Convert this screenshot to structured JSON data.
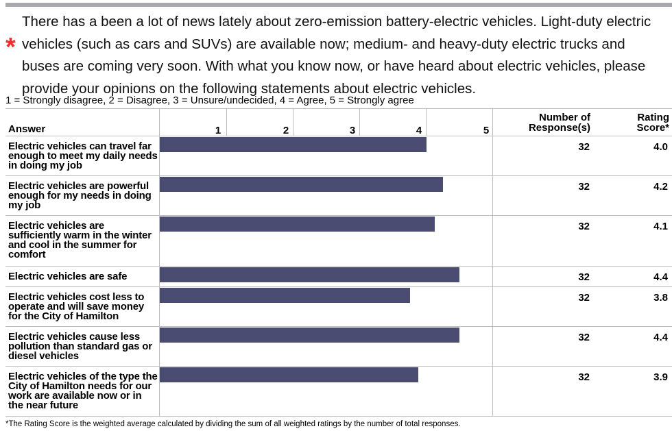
{
  "question": {
    "required_marker": "*",
    "text": "There has a been a lot of news lately about zero-emission battery-electric vehicles. Light-duty electric vehicles (such as cars and SUVs) are available now; medium- and heavy-duty electric trucks and buses are coming very soon. With what you know now, or have heard about electric vehicles, please provide your opinions on the following statements about electric vehicles."
  },
  "scale_note": "1 = Strongly disagree, 2 = Disagree, 3 = Unsure/undecided, 4 = Agree, 5 = Strongly agree",
  "headers": {
    "answer": "Answer",
    "responses": "Number of Response(s)",
    "score": "Rating Score*"
  },
  "footnote": "*The Rating Score is the weighted average calculated by dividing the sum of all weighted ratings by the number of total responses.",
  "colors": {
    "bar": "#4a4c72",
    "required": "#e8312f",
    "divider": "#a7a9ac"
  },
  "chart_data": {
    "type": "bar",
    "orientation": "horizontal",
    "x_ticks": [
      "1",
      "2",
      "3",
      "4",
      "5"
    ],
    "xlim": [
      1,
      5
    ],
    "categories": [
      "Electric vehicles can travel far enough to meet my daily needs in doing my job",
      "Electric vehicles are powerful enough for my needs in doing my job",
      "Electric vehicles are sufficiently warm in the winter and cool in the summer for comfort",
      "Electric vehicles are safe",
      "Electric vehicles cost less to operate and will save money for the City of Hamilton",
      "Electric vehicles cause less pollution than standard gas or diesel vehicles",
      "Electric vehicles of the type the City of Hamilton needs for our work are available now or in the near future"
    ],
    "values": [
      4.0,
      4.2,
      4.1,
      4.4,
      3.8,
      4.4,
      3.9
    ],
    "responses": [
      32,
      32,
      32,
      32,
      32,
      32,
      32
    ],
    "scores": [
      "4.0",
      "4.2",
      "4.1",
      "4.4",
      "3.8",
      "4.4",
      "3.9"
    ]
  }
}
